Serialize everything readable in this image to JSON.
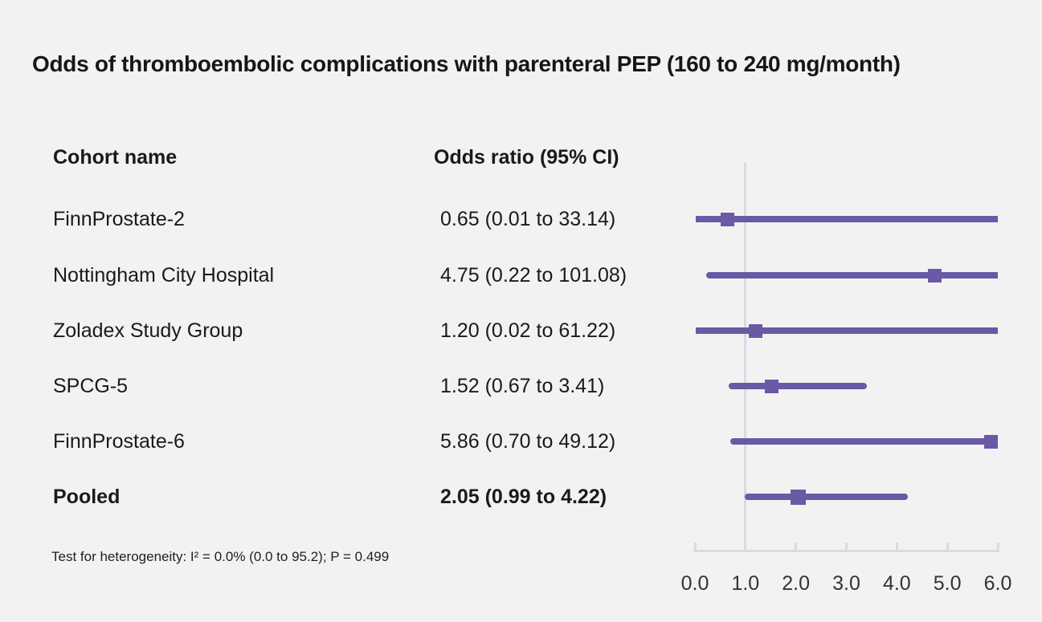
{
  "title": "Odds of thromboembolic complications with parenteral PEP (160 to 240 mg/month)",
  "footnote": "Test for heterogeneity: I² = 0.0% (0.0 to 95.2); P = 0.499",
  "chart_data": {
    "type": "scatter",
    "subtype": "forest-plot",
    "title": "Odds of thromboembolic complications with parenteral PEP (160 to 240 mg/month)",
    "columns": {
      "cohort": "Cohort name",
      "odds_ratio": "Odds ratio (95% CI)"
    },
    "rows": [
      {
        "name": "FinnProstate-2",
        "or": 0.65,
        "ci_low": 0.01,
        "ci_high": 33.14,
        "label": "0.65 (0.01 to 33.14)",
        "pooled": false
      },
      {
        "name": "Nottingham City Hospital",
        "or": 4.75,
        "ci_low": 0.22,
        "ci_high": 101.08,
        "label": "4.75 (0.22 to 101.08)",
        "pooled": false
      },
      {
        "name": "Zoladex Study Group",
        "or": 1.2,
        "ci_low": 0.02,
        "ci_high": 61.22,
        "label": "1.20 (0.02 to 61.22)",
        "pooled": false
      },
      {
        "name": "SPCG-5",
        "or": 1.52,
        "ci_low": 0.67,
        "ci_high": 3.41,
        "label": "1.52 (0.67 to 3.41)",
        "pooled": false
      },
      {
        "name": "FinnProstate-6",
        "or": 5.86,
        "ci_low": 0.7,
        "ci_high": 49.12,
        "label": "5.86 (0.70 to 49.12)",
        "pooled": false
      },
      {
        "name": "Pooled",
        "or": 2.05,
        "ci_low": 0.99,
        "ci_high": 4.22,
        "label": "2.05 (0.99 to 4.22)",
        "pooled": true
      }
    ],
    "xlim": [
      0,
      6
    ],
    "xticks": [
      0,
      1,
      2,
      3,
      4,
      5,
      6
    ],
    "xtick_labels": [
      "0.0",
      "1.0",
      "2.0",
      "3.0",
      "4.0",
      "5.0",
      "6.0"
    ],
    "reference_line": 1.0,
    "grid": false,
    "legend": "none",
    "footnote": "Test for heterogeneity: I² = 0.0% (0.0 to 95.2); P = 0.499",
    "colors": {
      "ci_line": "#6a59a4",
      "marker": "#6a59a4",
      "reference_line": "#d8dbe2",
      "axis": "#d8dbe2",
      "background": "#f2f2f2",
      "text": "#1a1a1a",
      "tick_text": "#333333"
    }
  }
}
